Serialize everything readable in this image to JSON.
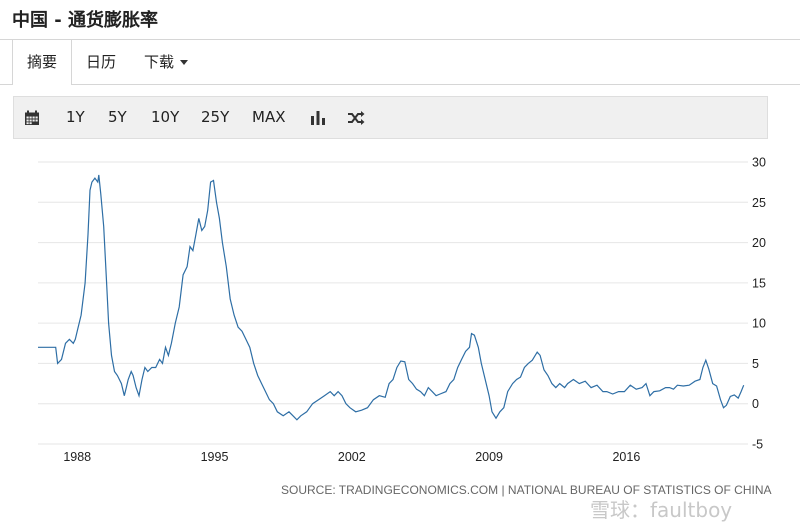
{
  "page_title": "中国 - 通货膨胀率",
  "tabs": [
    {
      "label": "摘要"
    },
    {
      "label": "日历"
    },
    {
      "label": "下载"
    }
  ],
  "toolbar": {
    "buttons": [
      {
        "label": "1Y"
      },
      {
        "label": "5Y"
      },
      {
        "label": "10Y"
      },
      {
        "label": "25Y"
      },
      {
        "label": "MAX"
      }
    ],
    "icons": [
      "calendar-icon",
      "bar-chart-icon",
      "shuffle-icon"
    ]
  },
  "chart_data": {
    "type": "line",
    "xlabel": "",
    "ylabel": "",
    "x_ticks": [
      "1988",
      "1995",
      "2002",
      "2009",
      "2016"
    ],
    "y_ticks": [
      30,
      25,
      20,
      15,
      10,
      5,
      0,
      -5
    ],
    "ylim": [
      -5,
      30
    ],
    "xlim": [
      1986.0,
      2022.2
    ],
    "grid": true,
    "line_color": "#2e6ea5",
    "series": [
      {
        "name": "",
        "points": [
          [
            1986.0,
            7.0
          ],
          [
            1986.5,
            7.0
          ],
          [
            1986.9,
            7.0
          ],
          [
            1987.0,
            5.0
          ],
          [
            1987.2,
            5.5
          ],
          [
            1987.4,
            7.5
          ],
          [
            1987.6,
            8.0
          ],
          [
            1987.8,
            7.5
          ],
          [
            1987.9,
            8.0
          ],
          [
            1988.0,
            9.0
          ],
          [
            1988.2,
            11.0
          ],
          [
            1988.4,
            15.0
          ],
          [
            1988.55,
            21.0
          ],
          [
            1988.65,
            26.5
          ],
          [
            1988.75,
            27.5
          ],
          [
            1988.9,
            28.0
          ],
          [
            1989.05,
            27.5
          ],
          [
            1989.1,
            28.4
          ],
          [
            1989.2,
            26.0
          ],
          [
            1989.35,
            22.0
          ],
          [
            1989.5,
            15.0
          ],
          [
            1989.6,
            10.0
          ],
          [
            1989.75,
            6.0
          ],
          [
            1989.9,
            4.0
          ],
          [
            1990.05,
            3.5
          ],
          [
            1990.25,
            2.5
          ],
          [
            1990.4,
            1.0
          ],
          [
            1990.5,
            2.0
          ],
          [
            1990.6,
            3.0
          ],
          [
            1990.75,
            4.0
          ],
          [
            1990.85,
            3.5
          ],
          [
            1991.0,
            2.0
          ],
          [
            1991.15,
            1.0
          ],
          [
            1991.3,
            3.0
          ],
          [
            1991.45,
            4.5
          ],
          [
            1991.6,
            4.0
          ],
          [
            1991.8,
            4.5
          ],
          [
            1992.0,
            4.5
          ],
          [
            1992.2,
            5.5
          ],
          [
            1992.35,
            5.0
          ],
          [
            1992.5,
            7.0
          ],
          [
            1992.65,
            6.0
          ],
          [
            1992.8,
            7.5
          ],
          [
            1993.0,
            10.0
          ],
          [
            1993.2,
            12.0
          ],
          [
            1993.4,
            16.0
          ],
          [
            1993.6,
            17.0
          ],
          [
            1993.75,
            19.5
          ],
          [
            1993.9,
            19.0
          ],
          [
            1994.05,
            21.0
          ],
          [
            1994.2,
            23.0
          ],
          [
            1994.35,
            21.5
          ],
          [
            1994.5,
            22.0
          ],
          [
            1994.65,
            24.0
          ],
          [
            1994.8,
            27.5
          ],
          [
            1994.95,
            27.7
          ],
          [
            1995.1,
            25.0
          ],
          [
            1995.25,
            23.0
          ],
          [
            1995.4,
            20.0
          ],
          [
            1995.6,
            17.0
          ],
          [
            1995.8,
            13.0
          ],
          [
            1996.0,
            11.0
          ],
          [
            1996.2,
            9.5
          ],
          [
            1996.4,
            9.0
          ],
          [
            1996.6,
            8.0
          ],
          [
            1996.8,
            7.0
          ],
          [
            1997.0,
            5.0
          ],
          [
            1997.2,
            3.5
          ],
          [
            1997.4,
            2.5
          ],
          [
            1997.6,
            1.5
          ],
          [
            1997.8,
            0.5
          ],
          [
            1998.0,
            0.0
          ],
          [
            1998.2,
            -1.0
          ],
          [
            1998.5,
            -1.5
          ],
          [
            1998.8,
            -1.0
          ],
          [
            1999.0,
            -1.5
          ],
          [
            1999.2,
            -2.0
          ],
          [
            1999.4,
            -1.5
          ],
          [
            1999.7,
            -1.0
          ],
          [
            2000.0,
            0.0
          ],
          [
            2000.3,
            0.5
          ],
          [
            2000.6,
            1.0
          ],
          [
            2000.9,
            1.5
          ],
          [
            2001.1,
            1.0
          ],
          [
            2001.3,
            1.5
          ],
          [
            2001.5,
            1.0
          ],
          [
            2001.7,
            0.0
          ],
          [
            2001.9,
            -0.5
          ],
          [
            2002.2,
            -1.0
          ],
          [
            2002.5,
            -0.8
          ],
          [
            2002.8,
            -0.5
          ],
          [
            2003.1,
            0.5
          ],
          [
            2003.4,
            1.0
          ],
          [
            2003.7,
            0.8
          ],
          [
            2003.9,
            2.5
          ],
          [
            2004.1,
            3.0
          ],
          [
            2004.3,
            4.5
          ],
          [
            2004.5,
            5.3
          ],
          [
            2004.7,
            5.2
          ],
          [
            2004.9,
            3.0
          ],
          [
            2005.1,
            2.5
          ],
          [
            2005.3,
            1.8
          ],
          [
            2005.5,
            1.5
          ],
          [
            2005.7,
            1.0
          ],
          [
            2005.9,
            2.0
          ],
          [
            2006.1,
            1.5
          ],
          [
            2006.3,
            1.0
          ],
          [
            2006.5,
            1.2
          ],
          [
            2006.8,
            1.5
          ],
          [
            2007.0,
            2.5
          ],
          [
            2007.2,
            3.0
          ],
          [
            2007.4,
            4.5
          ],
          [
            2007.6,
            5.5
          ],
          [
            2007.8,
            6.5
          ],
          [
            2008.0,
            7.0
          ],
          [
            2008.1,
            8.7
          ],
          [
            2008.25,
            8.5
          ],
          [
            2008.45,
            7.0
          ],
          [
            2008.6,
            5.0
          ],
          [
            2008.8,
            3.0
          ],
          [
            2009.0,
            1.0
          ],
          [
            2009.15,
            -1.0
          ],
          [
            2009.35,
            -1.8
          ],
          [
            2009.55,
            -1.0
          ],
          [
            2009.75,
            -0.5
          ],
          [
            2009.95,
            1.5
          ],
          [
            2010.2,
            2.5
          ],
          [
            2010.4,
            3.0
          ],
          [
            2010.6,
            3.3
          ],
          [
            2010.8,
            4.5
          ],
          [
            2011.0,
            5.0
          ],
          [
            2011.2,
            5.4
          ],
          [
            2011.45,
            6.4
          ],
          [
            2011.6,
            6.0
          ],
          [
            2011.8,
            4.2
          ],
          [
            2012.0,
            3.5
          ],
          [
            2012.2,
            2.5
          ],
          [
            2012.4,
            2.0
          ],
          [
            2012.6,
            2.5
          ],
          [
            2012.85,
            2.0
          ],
          [
            2013.0,
            2.5
          ],
          [
            2013.3,
            3.0
          ],
          [
            2013.6,
            2.5
          ],
          [
            2013.9,
            2.8
          ],
          [
            2014.2,
            2.0
          ],
          [
            2014.5,
            2.3
          ],
          [
            2014.8,
            1.5
          ],
          [
            2015.0,
            1.5
          ],
          [
            2015.3,
            1.2
          ],
          [
            2015.6,
            1.5
          ],
          [
            2015.9,
            1.5
          ],
          [
            2016.2,
            2.3
          ],
          [
            2016.5,
            1.8
          ],
          [
            2016.8,
            2.0
          ],
          [
            2017.0,
            2.5
          ],
          [
            2017.2,
            1.0
          ],
          [
            2017.4,
            1.5
          ],
          [
            2017.7,
            1.6
          ],
          [
            2018.0,
            2.0
          ],
          [
            2018.2,
            2.0
          ],
          [
            2018.4,
            1.8
          ],
          [
            2018.6,
            2.3
          ],
          [
            2018.9,
            2.2
          ],
          [
            2019.2,
            2.3
          ],
          [
            2019.5,
            2.8
          ],
          [
            2019.75,
            3.0
          ],
          [
            2019.9,
            4.5
          ],
          [
            2020.05,
            5.4
          ],
          [
            2020.2,
            4.3
          ],
          [
            2020.4,
            2.5
          ],
          [
            2020.6,
            2.2
          ],
          [
            2020.8,
            0.5
          ],
          [
            2020.95,
            -0.5
          ],
          [
            2021.1,
            -0.2
          ],
          [
            2021.3,
            0.9
          ],
          [
            2021.5,
            1.1
          ],
          [
            2021.7,
            0.7
          ],
          [
            2021.85,
            1.5
          ],
          [
            2021.98,
            2.3
          ]
        ]
      }
    ],
    "source": "SOURCE: TRADINGECONOMICS.COM | NATIONAL BUREAU OF STATISTICS OF CHINA"
  },
  "watermark": "雪球：faultboy"
}
